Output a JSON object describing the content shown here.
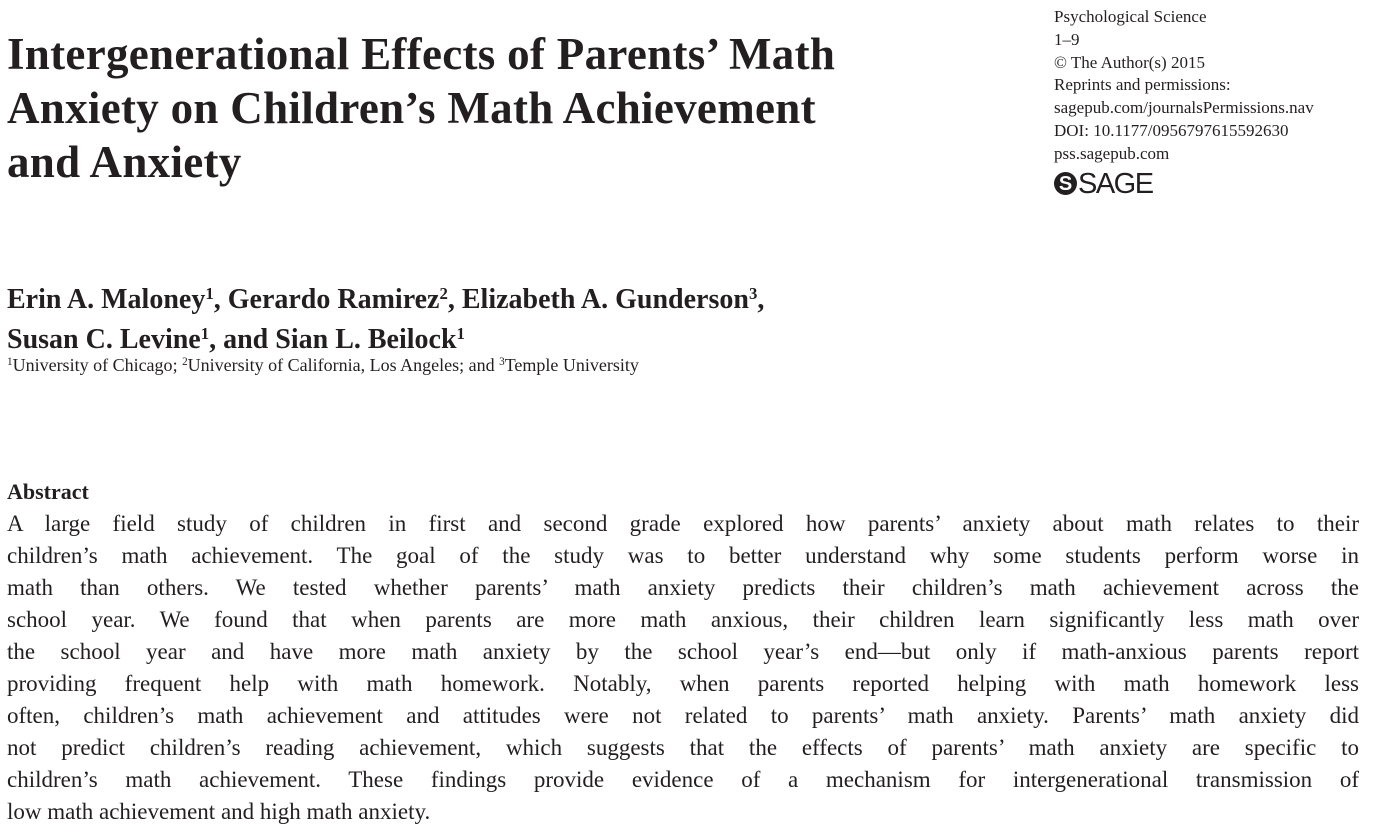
{
  "article": {
    "title_lines": [
      "Intergenerational Effects of Parents’ Math",
      "Anxiety on Children’s Math Achievement",
      "and Anxiety"
    ],
    "authors": [
      {
        "name": "Erin A. Maloney",
        "sup": "1",
        "sep": ", "
      },
      {
        "name": "Gerardo Ramirez",
        "sup": "2",
        "sep": ", "
      },
      {
        "name": "Elizabeth A. Gunderson",
        "sup": "3",
        "sep": ","
      },
      {
        "name": "Susan C. Levine",
        "sup": "1",
        "sep": ", and "
      },
      {
        "name": "Sian L. Beilock",
        "sup": "1",
        "sep": ""
      }
    ],
    "affiliations": [
      {
        "sup": "1",
        "name": "University of Chicago",
        "sep": "; "
      },
      {
        "sup": "2",
        "name": "University of California, Los Angeles",
        "sep": "; and "
      },
      {
        "sup": "3",
        "name": "Temple University",
        "sep": ""
      }
    ]
  },
  "journal_meta": {
    "journal": "Psychological Science",
    "pages": "1–9",
    "copyright": "© The Author(s) 2015",
    "reprints_label": "Reprints and permissions:",
    "permissions_url": "sagepub.com/journalsPermissions.nav",
    "doi": "DOI: 10.1177/0956797615592630",
    "journal_url": "pss.sagepub.com",
    "publisher_logo": {
      "icon": "sage-s-circle-icon",
      "glyph": "S",
      "text": "SAGE"
    }
  },
  "abstract": {
    "heading": "Abstract",
    "lines": [
      "A large field study of children in first and second grade explored how parents’ anxiety about math relates to their",
      "children’s math achievement. The goal of the study was to better understand why some students perform worse in",
      "math than others. We tested whether parents’ math anxiety predicts their children’s math achievement across the",
      "school year. We found that when parents are more math anxious, their children learn significantly less math over",
      "the school year and have more math anxiety by the school year’s end—but only if math-anxious parents report",
      "providing frequent help with math homework. Notably, when parents reported helping with math homework less",
      "often, children’s math achievement and attitudes were not related to parents’ math anxiety. Parents’ math anxiety did",
      "not predict children’s reading achievement, which suggests that the effects of parents’ math anxiety are specific to",
      "children’s math achievement. These findings provide evidence of a mechanism for intergenerational transmission of",
      "low math achievement and high math anxiety."
    ]
  }
}
